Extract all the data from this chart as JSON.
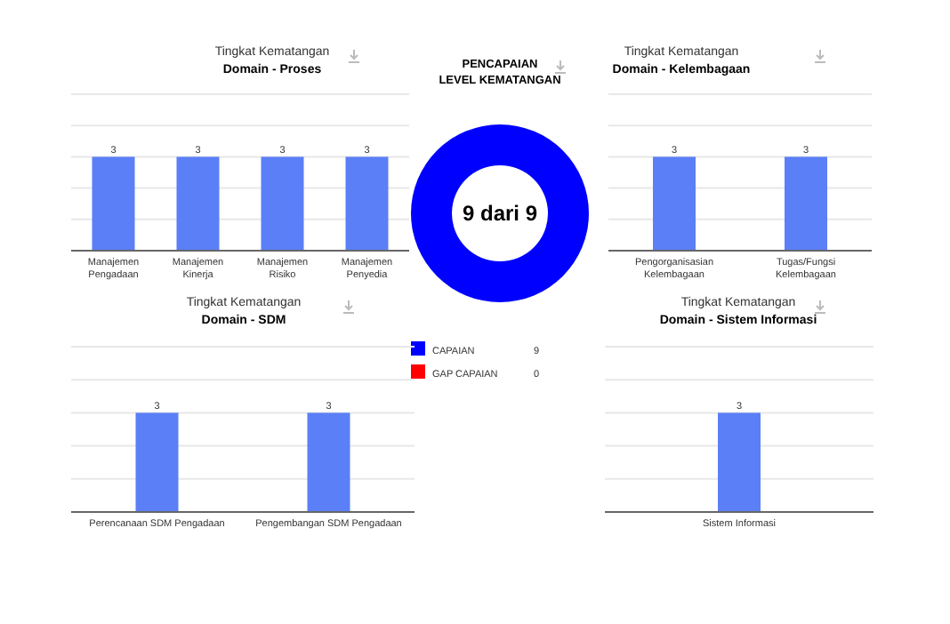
{
  "chart_data": [
    {
      "type": "bar",
      "title": "Tingkat Kematangan",
      "subtitle": "Domain - Proses",
      "categories": [
        "Manajemen Pengadaan",
        "Manajemen Kinerja",
        "Manajemen Risiko",
        "Manajemen Penyedia"
      ],
      "values": [
        3,
        3,
        3,
        3
      ],
      "color": "#5b7ff7",
      "ylim": [
        0,
        5
      ],
      "yticks": [
        {
          "value": 0,
          "label": null
        },
        {
          "value": 1,
          "label": null
        },
        {
          "value": 2,
          "label": null
        },
        {
          "value": 3,
          "label": null
        },
        {
          "value": 4,
          "label": null
        },
        {
          "value": 5,
          "label": null
        }
      ],
      "grid": "y",
      "tick_labels": "x",
      "data_labels": true
    },
    {
      "type": "donut",
      "title": "PENCAPAIAN\nLEVEL KEMATANGAN",
      "categories": [
        "CAPAIAN",
        "GAP CAPAIAN"
      ],
      "values": [
        9,
        0
      ],
      "value_labels": [
        "9",
        "0"
      ],
      "colors": [
        "#0000ff",
        "#ff0000"
      ],
      "annotations": [
        "9 dari 9"
      ],
      "legend": "bottom"
    },
    {
      "type": "bar",
      "title": "Tingkat Kematangan",
      "subtitle": "Domain - Kelembagaan",
      "categories": [
        "Pengorganisasian Kelembagaan",
        "Tugas/Fungsi Kelembagaan"
      ],
      "values": [
        3,
        3
      ],
      "color": "#5b7ff7",
      "ylim": [
        0,
        5
      ],
      "yticks": [
        {
          "value": 0,
          "label": null
        },
        {
          "value": 1,
          "label": null
        },
        {
          "value": 2,
          "label": null
        },
        {
          "value": 3,
          "label": null
        },
        {
          "value": 4,
          "label": null
        },
        {
          "value": 5,
          "label": null
        }
      ],
      "grid": "y",
      "tick_labels": "x",
      "data_labels": true
    },
    {
      "type": "bar",
      "title": "Tingkat Kematangan",
      "subtitle": "Domain - SDM",
      "categories": [
        "Perencanaan SDM Pengadaan",
        "Pengembangan SDM Pengadaan"
      ],
      "values": [
        3,
        3
      ],
      "color": "#5b7ff7",
      "ylim": [
        0,
        5
      ],
      "yticks": [
        {
          "value": 0,
          "label": null
        },
        {
          "value": 1,
          "label": null
        },
        {
          "value": 2,
          "label": null
        },
        {
          "value": 3,
          "label": null
        },
        {
          "value": 4,
          "label": null
        },
        {
          "value": 5,
          "label": null
        }
      ],
      "grid": "y",
      "tick_labels": "x",
      "data_labels": true
    },
    {
      "type": "bar",
      "title": "Tingkat Kematangan",
      "subtitle": "Domain - Sistem Informasi",
      "categories": [
        "Sistem Informasi"
      ],
      "values": [
        3
      ],
      "color": "#5b7ff7",
      "ylim": [
        0,
        5
      ],
      "yticks": [
        {
          "value": 0,
          "label": null
        },
        {
          "value": 1,
          "label": null
        },
        {
          "value": 2,
          "label": null
        },
        {
          "value": 3,
          "label": null
        },
        {
          "value": 4,
          "label": null
        },
        {
          "value": 5,
          "label": null
        }
      ],
      "grid": "y",
      "tick_labels": "x",
      "data_labels": true
    }
  ]
}
